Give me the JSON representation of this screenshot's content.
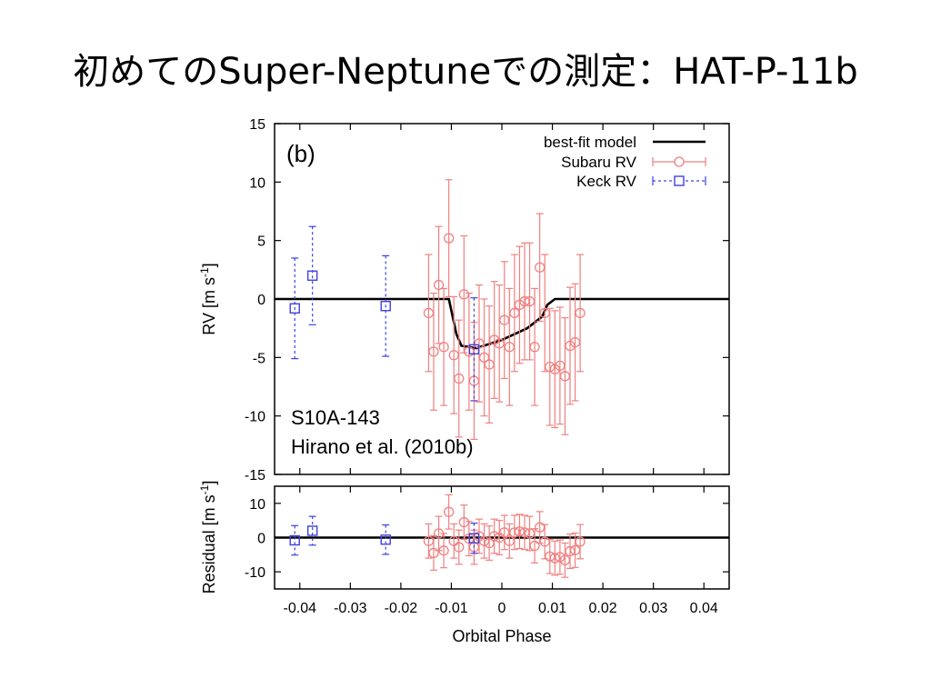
{
  "slide": {
    "title": "初めてのSuper-Neptuneでの測定：HAT-P-11b"
  },
  "colors": {
    "subaru": "#f08080",
    "keck": "#4040e0",
    "model": "#000000"
  },
  "chart_data": [
    {
      "type": "scatter",
      "panel": "(b)",
      "xlabel": "",
      "ylabel": "RV [m s-1]",
      "xlim": [
        -0.045,
        0.045
      ],
      "ylim": [
        -15,
        15
      ],
      "yticks": [
        "15",
        "10",
        "5",
        "0",
        "-5",
        "-10",
        "-15"
      ],
      "annotation_lines": [
        "S10A-143",
        "Hirano et al. (2010b)"
      ],
      "legend": {
        "position": "top-right",
        "entries": [
          "best-fit model",
          "Subaru RV",
          "Keck RV"
        ]
      },
      "model": {
        "name": "best-fit model",
        "x": [
          -0.045,
          -0.0105,
          -0.009,
          -0.008,
          -0.005,
          0.0,
          0.005,
          0.008,
          0.009,
          0.0105,
          0.045
        ],
        "y": [
          0,
          0,
          -3.0,
          -4.0,
          -4.2,
          -3.5,
          -2.5,
          -1.5,
          -0.5,
          0,
          0
        ]
      },
      "series": [
        {
          "name": "Subaru RV",
          "x": [
            -0.0145,
            -0.0135,
            -0.0125,
            -0.0115,
            -0.0105,
            -0.0095,
            -0.0085,
            -0.0075,
            -0.0065,
            -0.0055,
            -0.0045,
            -0.0035,
            -0.0025,
            -0.0015,
            -0.0005,
            0.0005,
            0.0015,
            0.0025,
            0.0035,
            0.0045,
            0.0055,
            0.0065,
            0.0075,
            0.0085,
            0.0095,
            0.0105,
            0.0115,
            0.0125,
            0.0135,
            0.0145,
            0.0155
          ],
          "y": [
            -1.2,
            -4.5,
            1.2,
            -4.1,
            5.2,
            -4.8,
            -6.8,
            0.4,
            -4.5,
            -7.0,
            -3.8,
            -5.0,
            -5.6,
            -3.5,
            -3.8,
            -1.8,
            -4.1,
            -1.2,
            -0.5,
            -0.2,
            -0.2,
            -4.1,
            2.7,
            -1.2,
            -5.8,
            -6.0,
            -5.7,
            -6.6,
            -4.0,
            -3.7,
            -1.2
          ],
          "err": [
            5.0,
            5.0,
            5.0,
            5.0,
            5.0,
            5.0,
            5.0,
            5.0,
            5.0,
            5.0,
            5.0,
            5.0,
            5.0,
            5.0,
            5.0,
            5.0,
            5.0,
            5.0,
            5.0,
            5.0,
            5.0,
            5.0,
            4.6,
            5.0,
            5.0,
            5.0,
            5.0,
            5.0,
            5.0,
            5.0,
            5.0
          ]
        },
        {
          "name": "Keck RV",
          "x": [
            -0.041,
            -0.0375,
            -0.023,
            -0.0055
          ],
          "y": [
            -0.8,
            2.0,
            -0.6,
            -4.3
          ],
          "err": [
            4.3,
            4.2,
            4.3,
            4.4
          ]
        }
      ]
    },
    {
      "type": "scatter",
      "panel": "residual",
      "xlabel": "Orbital Phase",
      "ylabel": "Residual [m s-1]",
      "xlim": [
        -0.045,
        0.045
      ],
      "ylim": [
        -15,
        15
      ],
      "xticks": [
        "-0.04",
        "-0.03",
        "-0.02",
        "-0.01",
        "0",
        "0.01",
        "0.02",
        "0.03",
        "0.04"
      ],
      "yticks": [
        "10",
        "0",
        "-10"
      ],
      "series": [
        {
          "name": "Subaru RV",
          "x": [
            -0.0145,
            -0.0135,
            -0.0125,
            -0.0115,
            -0.0105,
            -0.0095,
            -0.0085,
            -0.0075,
            -0.0065,
            -0.0055,
            -0.0045,
            -0.0035,
            -0.0025,
            -0.0015,
            -0.0005,
            0.0005,
            0.0015,
            0.0025,
            0.0035,
            0.0045,
            0.0055,
            0.0065,
            0.0075,
            0.0085,
            0.0095,
            0.0105,
            0.0115,
            0.0125,
            0.0135,
            0.0145,
            0.0155
          ],
          "y": [
            -1.0,
            -4.5,
            1.2,
            -3.8,
            7.5,
            -1.0,
            -2.8,
            4.5,
            -0.3,
            -2.8,
            0.4,
            -1.0,
            -1.6,
            0.4,
            0.0,
            1.5,
            -1.0,
            1.5,
            1.8,
            1.5,
            1.2,
            -2.4,
            3.0,
            -1.2,
            -5.5,
            -6.0,
            -5.7,
            -6.6,
            -4.0,
            -3.7,
            -1.2
          ],
          "err": [
            5.0,
            5.0,
            5.0,
            5.0,
            5.0,
            5.0,
            5.0,
            5.0,
            5.0,
            5.0,
            5.0,
            5.0,
            5.0,
            5.0,
            5.0,
            5.0,
            5.0,
            5.0,
            5.0,
            5.0,
            5.0,
            5.0,
            4.6,
            5.0,
            5.0,
            5.0,
            5.0,
            5.0,
            5.0,
            5.0,
            5.0
          ]
        },
        {
          "name": "Keck RV",
          "x": [
            -0.041,
            -0.0375,
            -0.023,
            -0.0055
          ],
          "y": [
            -0.8,
            2.0,
            -0.6,
            -0.2
          ],
          "err": [
            4.3,
            4.2,
            4.3,
            4.4
          ]
        }
      ]
    }
  ]
}
